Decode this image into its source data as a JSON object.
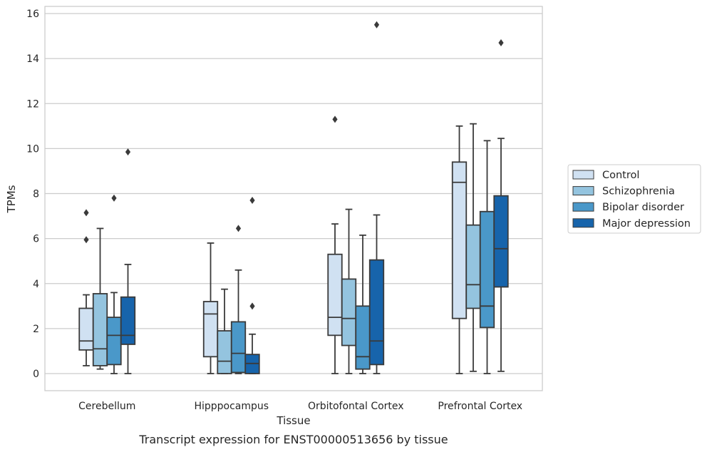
{
  "caption": "Transcript expression for ENST00000513656 by tissue",
  "chart_data": {
    "type": "box",
    "title": "",
    "xlabel": "Tissue",
    "ylabel": "TPMs",
    "ylim": [
      -0.75,
      16.3
    ],
    "yticks": [
      0,
      2,
      4,
      6,
      8,
      10,
      12,
      14,
      16
    ],
    "grid": true,
    "legend_position": "right",
    "categories": [
      "Cerebellum",
      "Hipppocampus",
      "Orbitofontal Cortex",
      "Prefrontal Cortex"
    ],
    "series": [
      {
        "name": "Control",
        "color": "#d0e1f2",
        "boxes": [
          {
            "whisker_low": 0.35,
            "q1": 1.05,
            "median": 1.45,
            "q3": 2.9,
            "whisker_high": 3.5,
            "outliers": [
              5.95,
              7.15
            ]
          },
          {
            "whisker_low": 0.0,
            "q1": 0.75,
            "median": 2.65,
            "q3": 3.2,
            "whisker_high": 5.8,
            "outliers": []
          },
          {
            "whisker_low": 0.0,
            "q1": 1.7,
            "median": 2.5,
            "q3": 5.3,
            "whisker_high": 6.65,
            "outliers": [
              11.3
            ]
          },
          {
            "whisker_low": 0.0,
            "q1": 2.45,
            "median": 8.5,
            "q3": 9.4,
            "whisker_high": 11.0,
            "outliers": []
          }
        ]
      },
      {
        "name": "Schizophrenia",
        "color": "#94c4df",
        "boxes": [
          {
            "whisker_low": 0.2,
            "q1": 0.35,
            "median": 1.1,
            "q3": 3.55,
            "whisker_high": 6.45,
            "outliers": []
          },
          {
            "whisker_low": 0.0,
            "q1": 0.0,
            "median": 0.55,
            "q3": 1.9,
            "whisker_high": 3.75,
            "outliers": []
          },
          {
            "whisker_low": 0.0,
            "q1": 1.25,
            "median": 2.45,
            "q3": 4.2,
            "whisker_high": 7.3,
            "outliers": []
          },
          {
            "whisker_low": 0.1,
            "q1": 2.9,
            "median": 3.95,
            "q3": 6.6,
            "whisker_high": 11.1,
            "outliers": []
          }
        ]
      },
      {
        "name": "Bipolar disorder",
        "color": "#4a98c9",
        "boxes": [
          {
            "whisker_low": 0.0,
            "q1": 0.4,
            "median": 1.7,
            "q3": 2.5,
            "whisker_high": 3.6,
            "outliers": [
              7.8
            ]
          },
          {
            "whisker_low": 0.0,
            "q1": 0.05,
            "median": 0.9,
            "q3": 2.3,
            "whisker_high": 4.6,
            "outliers": [
              6.45
            ]
          },
          {
            "whisker_low": 0.0,
            "q1": 0.2,
            "median": 0.75,
            "q3": 3.0,
            "whisker_high": 6.15,
            "outliers": []
          },
          {
            "whisker_low": 0.0,
            "q1": 2.05,
            "median": 3.0,
            "q3": 7.2,
            "whisker_high": 10.35,
            "outliers": []
          }
        ]
      },
      {
        "name": "Major depression",
        "color": "#1764ab",
        "boxes": [
          {
            "whisker_low": 0.0,
            "q1": 1.3,
            "median": 1.7,
            "q3": 3.4,
            "whisker_high": 4.85,
            "outliers": [
              9.85
            ]
          },
          {
            "whisker_low": 0.0,
            "q1": 0.0,
            "median": 0.45,
            "q3": 0.85,
            "whisker_high": 1.75,
            "outliers": [
              3.0,
              7.7
            ]
          },
          {
            "whisker_low": 0.0,
            "q1": 0.4,
            "median": 1.45,
            "q3": 5.05,
            "whisker_high": 7.05,
            "outliers": [
              15.5
            ]
          },
          {
            "whisker_low": 0.1,
            "q1": 3.85,
            "median": 5.55,
            "q3": 7.9,
            "whisker_high": 10.45,
            "outliers": [
              14.7
            ]
          }
        ]
      }
    ]
  }
}
